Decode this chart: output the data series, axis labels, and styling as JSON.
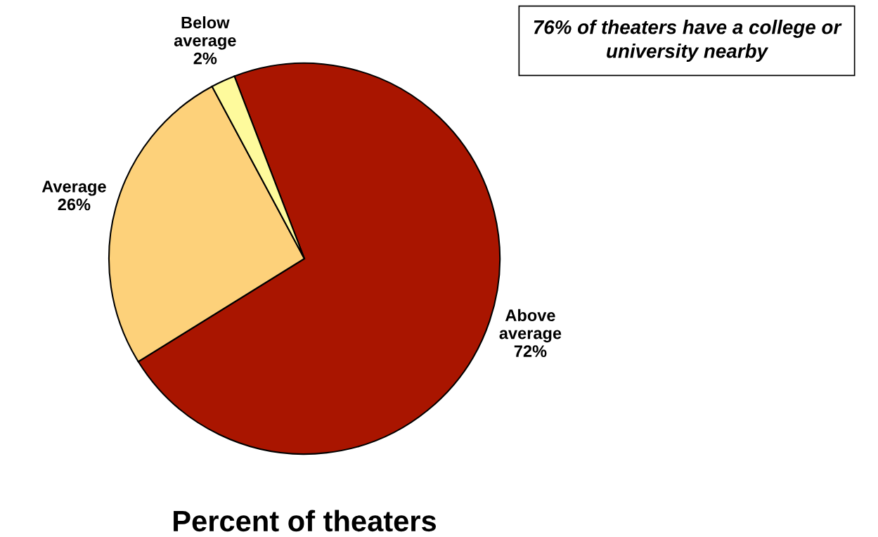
{
  "chart_data": {
    "type": "pie",
    "xlabel": "Percent of theaters",
    "categories": [
      "Above average",
      "Average",
      "Below average"
    ],
    "values": [
      72,
      26,
      2
    ],
    "colors": [
      "#a91500",
      "#fdd17a",
      "#fefa9c"
    ],
    "value_labels": [
      "72%",
      "26%",
      "2%"
    ],
    "annotations": [
      "76% of theaters have a college or university nearby"
    ]
  }
}
